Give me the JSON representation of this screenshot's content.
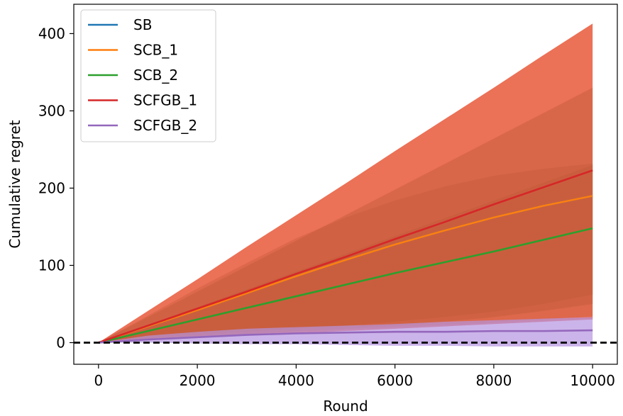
{
  "chart_data": {
    "type": "line",
    "title": "",
    "xlabel": "Round",
    "ylabel": "Cumulative regret",
    "xlim": [
      -500,
      10500
    ],
    "ylim": [
      -28,
      438
    ],
    "xticks": [
      0,
      2000,
      4000,
      6000,
      8000,
      10000
    ],
    "xtick_labels": [
      "0",
      "2000",
      "4000",
      "6000",
      "8000",
      "10000"
    ],
    "yticks": [
      0,
      100,
      200,
      300,
      400
    ],
    "ytick_labels": [
      "0",
      "100",
      "200",
      "300",
      "400"
    ],
    "grid": false,
    "legend_position": "top-left",
    "reference_line": {
      "y": 0,
      "style": "dashed",
      "color": "#000000"
    },
    "x": [
      0,
      1000,
      2000,
      3000,
      4000,
      5000,
      6000,
      7000,
      8000,
      9000,
      10000
    ],
    "series": [
      {
        "name": "SB",
        "color": "#1f77b4",
        "values": [
          0,
          21,
          42,
          64,
          86,
          107,
          127,
          145,
          162,
          177,
          190
        ],
        "band_lower": [
          0,
          4,
          8,
          11,
          14,
          17,
          20,
          23,
          26,
          30,
          34
        ],
        "band_upper": [
          0,
          35,
          70,
          103,
          135,
          162,
          184,
          202,
          216,
          225,
          232
        ]
      },
      {
        "name": "SCB_1",
        "color": "#ff7f0e",
        "values": [
          0,
          21,
          42,
          64,
          86,
          107,
          127,
          145,
          162,
          177,
          190
        ],
        "band_lower": [
          0,
          4,
          8,
          11,
          15,
          18,
          22,
          27,
          33,
          41,
          50
        ],
        "band_upper": [
          0,
          33,
          66,
          99,
          132,
          165,
          198,
          231,
          264,
          297,
          330
        ]
      },
      {
        "name": "SCB_2",
        "color": "#2ca02c",
        "values": [
          0,
          15,
          30,
          45,
          60,
          75,
          90,
          104,
          118,
          133,
          148
        ],
        "band_lower": [
          0,
          5,
          10,
          14,
          18,
          22,
          27,
          33,
          40,
          50,
          62
        ],
        "band_upper": [
          0,
          23,
          46,
          69,
          92,
          115,
          138,
          161,
          184,
          207,
          230
        ]
      },
      {
        "name": "SCFGB_1",
        "color": "#d62728",
        "values": [
          0,
          22,
          44,
          66,
          89,
          111,
          134,
          156,
          179,
          201,
          223
        ],
        "band_lower": [
          0,
          3,
          6,
          9,
          12,
          15,
          18,
          21,
          24,
          27,
          30
        ],
        "band_upper": [
          0,
          41,
          82,
          124,
          165,
          206,
          248,
          289,
          330,
          372,
          413
        ]
      },
      {
        "name": "SCFGB_2",
        "color": "#9467bd",
        "values": [
          0,
          4,
          7,
          10,
          12,
          13,
          14,
          14,
          15,
          15,
          16
        ],
        "band_lower": [
          0,
          0,
          -1,
          -2,
          -2,
          -3,
          -4,
          -4,
          -5,
          -5,
          -5
        ],
        "band_upper": [
          0,
          9,
          14,
          18,
          20,
          22,
          24,
          27,
          29,
          31,
          33
        ]
      }
    ]
  },
  "legend": {
    "items": [
      {
        "label": "SB",
        "color": "#1f77b4"
      },
      {
        "label": "SCB_1",
        "color": "#ff7f0e"
      },
      {
        "label": "SCB_2",
        "color": "#2ca02c"
      },
      {
        "label": "SCFGB_1",
        "color": "#d62728"
      },
      {
        "label": "SCFGB_2",
        "color": "#9467bd"
      }
    ]
  }
}
